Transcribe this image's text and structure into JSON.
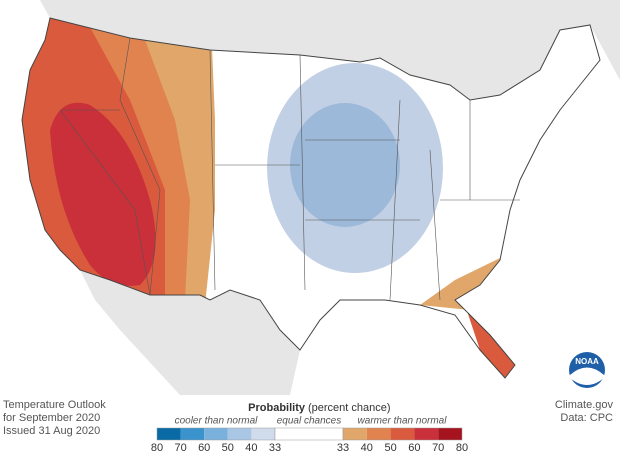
{
  "title_block": {
    "lines": [
      "Temperature Outlook",
      "for September 2020",
      "Issued 31 Aug 2020"
    ]
  },
  "legend": {
    "title": "Probability",
    "title_note": "(percent chance)",
    "cooler": "cooler than normal",
    "equal": "equal chances",
    "warmer": "warmer than normal",
    "cool_colors": [
      "#0a6aa6",
      "#3a93cc",
      "#79b1dc",
      "#a9c6e4",
      "#d0dbec"
    ],
    "warm_colors": [
      "#e0a66a",
      "#e0834f",
      "#d95a3c",
      "#c9303a",
      "#a5141e"
    ],
    "cool_labels": [
      80,
      70,
      60,
      50,
      40,
      33
    ],
    "warm_labels": [
      33,
      40,
      50,
      60,
      70,
      80
    ]
  },
  "credit": {
    "source": "Climate.gov",
    "data": "Data: CPC"
  },
  "logo": "NOAA"
}
